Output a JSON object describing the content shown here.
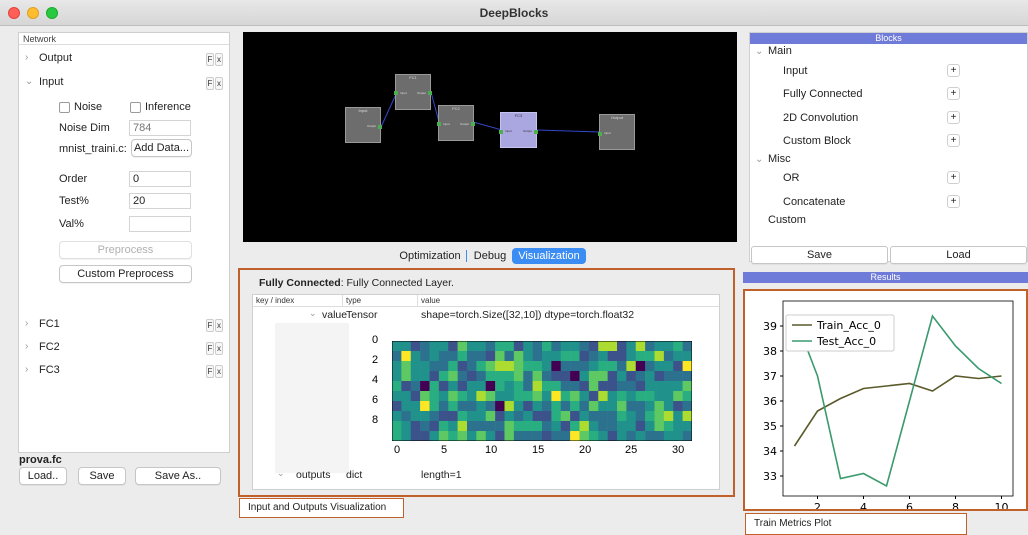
{
  "window": {
    "title": "DeepBlocks"
  },
  "network": {
    "header": "Network",
    "items": [
      {
        "label": "Output",
        "expanded": false
      },
      {
        "label": "Input",
        "expanded": true
      },
      {
        "label": "FC1",
        "expanded": false
      },
      {
        "label": "FC2",
        "expanded": false
      },
      {
        "label": "FC3",
        "expanded": false
      }
    ],
    "f_label": "F",
    "x_label": "x",
    "input": {
      "noise_label": "Noise",
      "inference_label": "Inference",
      "noise_dim_label": "Noise Dim",
      "noise_dim_placeholder": "784",
      "dataset_label": "mnist_traini.c:",
      "add_data_button": "Add Data...",
      "order_label": "Order",
      "order_value": "0",
      "test_label": "Test%",
      "test_value": "20",
      "val_label": "Val%",
      "val_value": "",
      "preprocess_button": "Preprocess",
      "custom_preprocess_button": "Custom Preprocess"
    },
    "filename": "prova.fc",
    "load_button": "Load..",
    "save_button": "Save",
    "save_as_button": "Save As.."
  },
  "graph": {
    "nodes": [
      {
        "label": "Input"
      },
      {
        "label": "FC1"
      },
      {
        "label": "FC2"
      },
      {
        "label": "FC3"
      },
      {
        "label": "Output"
      }
    ],
    "port_in": "Input",
    "port_out": "Output"
  },
  "tabs": [
    {
      "label": "Optimization",
      "active": false
    },
    {
      "label": "Debug",
      "active": false
    },
    {
      "label": "Visualization",
      "active": true
    }
  ],
  "visualization": {
    "title_bold": "Fully Connected",
    "title_rest": ": Fully Connected Layer.",
    "columns": [
      "key / index",
      "type",
      "value"
    ],
    "rows": [
      {
        "key": "value",
        "type": "Tensor",
        "value": "shape=torch.Size([32,10]) dtype=torch.float32"
      },
      {
        "key": "outputs",
        "type": "dict",
        "value": "length=1"
      }
    ],
    "caption": "Input and Outputs Visualization"
  },
  "chart_data": [
    {
      "type": "heatmap",
      "rows": 10,
      "cols": 32,
      "yticks": [
        "0",
        "2",
        "4",
        "6",
        "8"
      ],
      "xticks": [
        "0",
        "5",
        "10",
        "15",
        "20",
        "25",
        "30"
      ],
      "colormap": "viridis"
    },
    {
      "type": "line",
      "x": [
        1,
        2,
        3,
        4,
        5,
        6,
        7,
        8,
        9,
        10
      ],
      "series": [
        {
          "name": "Train_Acc_0",
          "color": "#5b5a2a",
          "values": [
            34.2,
            35.6,
            36.1,
            36.5,
            36.6,
            36.7,
            36.4,
            37.0,
            36.9,
            37.0
          ]
        },
        {
          "name": "Test_Acc_0",
          "color": "#3a9a6e",
          "values": [
            39.4,
            37.0,
            32.9,
            33.1,
            32.6,
            36.0,
            39.4,
            38.2,
            37.3,
            36.7
          ]
        }
      ],
      "yticks": [
        "33",
        "34",
        "35",
        "36",
        "37",
        "38",
        "39"
      ],
      "xticks": [
        "2",
        "4",
        "6",
        "8",
        "10"
      ],
      "ylim": [
        32.2,
        40.0
      ],
      "xlim": [
        0.5,
        10.5
      ],
      "legend": "top-left"
    }
  ],
  "blocks": {
    "header": "Blocks",
    "groups": [
      {
        "label": "Main",
        "items": [
          "Input",
          "Fully Connected",
          "2D Convolution",
          "Custom Block"
        ]
      },
      {
        "label": "Misc",
        "items": [
          "OR",
          "Concatenate"
        ]
      }
    ],
    "custom_label": "Custom",
    "save_button": "Save",
    "load_button": "Load",
    "plus": "+"
  },
  "results": {
    "header": "Results",
    "caption": "Train Metrics Plot"
  }
}
